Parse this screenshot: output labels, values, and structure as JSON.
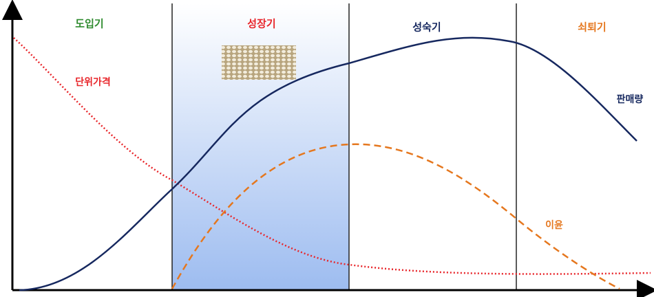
{
  "stages": [
    "도입기",
    "성장기",
    "성숙기",
    "쇠퇴기"
  ],
  "curves": {
    "price": "단위가격",
    "sales": "판매량",
    "profit": "이윤"
  }
}
